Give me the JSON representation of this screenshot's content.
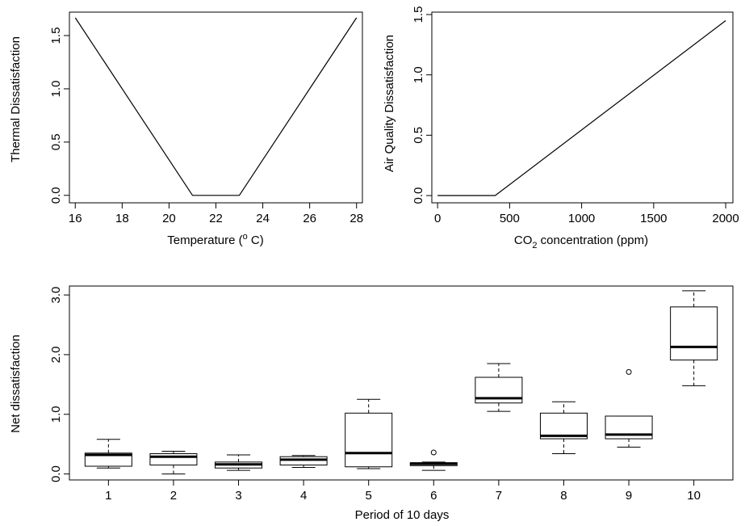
{
  "chart_data": [
    {
      "type": "line",
      "title": "",
      "xlabel": "Temperature (",
      "xlabel_sup": "o",
      "xlabel_tail": " C)",
      "ylabel": "Thermal Dissatisfaction",
      "xlim": [
        15.75,
        28.25
      ],
      "ylim": [
        -0.07,
        1.72
      ],
      "x_ticks": [
        16,
        18,
        20,
        22,
        24,
        26,
        28
      ],
      "x_tick_labels": [
        "16",
        "18",
        "20",
        "22",
        "24",
        "26",
        "28"
      ],
      "y_ticks": [
        0,
        0.5,
        1,
        1.5
      ],
      "y_tick_labels": [
        "0.0",
        "0.5",
        "1.0",
        "1.5"
      ],
      "grid": false,
      "series": [
        {
          "x": [
            16,
            21,
            23,
            28
          ],
          "y": [
            1.667,
            0,
            0,
            1.667
          ]
        }
      ]
    },
    {
      "type": "line",
      "title": "",
      "xlabel_pre": "CO",
      "xlabel_sub": "2",
      "xlabel": "  concentration (ppm)",
      "ylabel": "Air Quality Dissatisfaction",
      "xlim": [
        -40,
        2050
      ],
      "ylim": [
        -0.06,
        1.52
      ],
      "x_ticks": [
        0,
        500,
        1000,
        1500,
        2000
      ],
      "x_tick_labels": [
        "0",
        "500",
        "1000",
        "1500",
        "2000"
      ],
      "y_ticks": [
        0,
        0.5,
        1,
        1.5
      ],
      "y_tick_labels": [
        "0.0",
        "0.5",
        "1.0",
        "1.5"
      ],
      "grid": false,
      "series": [
        {
          "x": [
            0,
            400,
            2000
          ],
          "y": [
            0,
            0,
            1.45
          ]
        }
      ]
    },
    {
      "type": "box",
      "title": "",
      "xlabel": "Period of 10 days",
      "ylabel": "Net dissatisfaction",
      "ylim": [
        -0.1,
        3.15
      ],
      "y_ticks": [
        0,
        1,
        2,
        3
      ],
      "y_tick_labels": [
        "0.0",
        "1.0",
        "2.0",
        "3.0"
      ],
      "grid": false,
      "categories": [
        "1",
        "2",
        "3",
        "4",
        "5",
        "6",
        "7",
        "8",
        "9",
        "10"
      ],
      "boxes": [
        {
          "min": 0.1,
          "q1": 0.13,
          "median": 0.32,
          "q3": 0.35,
          "max": 0.58,
          "outliers": []
        },
        {
          "min": 0.0,
          "q1": 0.15,
          "median": 0.29,
          "q3": 0.34,
          "max": 0.38,
          "outliers": []
        },
        {
          "min": 0.06,
          "q1": 0.1,
          "median": 0.16,
          "q3": 0.2,
          "max": 0.32,
          "outliers": []
        },
        {
          "min": 0.11,
          "q1": 0.15,
          "median": 0.24,
          "q3": 0.29,
          "max": 0.31,
          "outliers": []
        },
        {
          "min": 0.09,
          "q1": 0.12,
          "median": 0.35,
          "q3": 1.02,
          "max": 1.25,
          "outliers": []
        },
        {
          "min": 0.06,
          "q1": 0.14,
          "median": 0.17,
          "q3": 0.19,
          "max": 0.2,
          "outliers": [
            0.36
          ]
        },
        {
          "min": 1.05,
          "q1": 1.19,
          "median": 1.27,
          "q3": 1.62,
          "max": 1.85,
          "outliers": []
        },
        {
          "min": 0.34,
          "q1": 0.59,
          "median": 0.64,
          "q3": 1.02,
          "max": 1.21,
          "outliers": []
        },
        {
          "min": 0.45,
          "q1": 0.59,
          "median": 0.66,
          "q3": 0.97,
          "max": 0.97,
          "outliers": [
            1.71
          ]
        },
        {
          "min": 1.48,
          "q1": 1.91,
          "median": 2.13,
          "q3": 2.8,
          "max": 3.07,
          "outliers": []
        }
      ]
    }
  ]
}
